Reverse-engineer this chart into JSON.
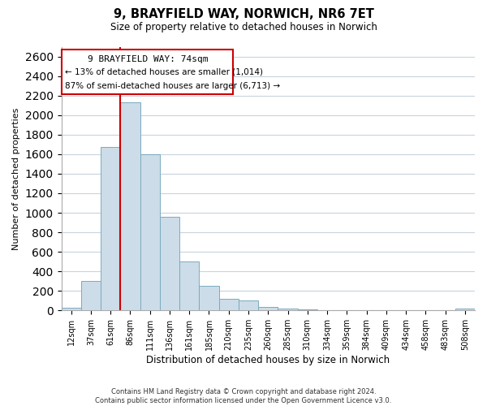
{
  "title": "9, BRAYFIELD WAY, NORWICH, NR6 7ET",
  "subtitle": "Size of property relative to detached houses in Norwich",
  "xlabel": "Distribution of detached houses by size in Norwich",
  "ylabel": "Number of detached properties",
  "bar_color": "#ccdce8",
  "bar_edge_color": "#7aaac0",
  "annotation_box_edge": "#cc0000",
  "property_line_color": "#cc0000",
  "categories": [
    "12sqm",
    "37sqm",
    "61sqm",
    "86sqm",
    "111sqm",
    "136sqm",
    "161sqm",
    "185sqm",
    "210sqm",
    "235sqm",
    "260sqm",
    "285sqm",
    "310sqm",
    "334sqm",
    "359sqm",
    "384sqm",
    "409sqm",
    "434sqm",
    "458sqm",
    "483sqm",
    "508sqm"
  ],
  "values": [
    25,
    300,
    1670,
    2130,
    1600,
    960,
    505,
    250,
    120,
    100,
    38,
    18,
    8,
    6,
    5,
    5,
    5,
    4,
    4,
    4,
    20
  ],
  "ylim": [
    0,
    2700
  ],
  "yticks": [
    0,
    200,
    400,
    600,
    800,
    1000,
    1200,
    1400,
    1600,
    1800,
    2000,
    2200,
    2400,
    2600
  ],
  "property_label": "9 BRAYFIELD WAY: 74sqm",
  "annotation_line1": "← 13% of detached houses are smaller (1,014)",
  "annotation_line2": "87% of semi-detached houses are larger (6,713) →",
  "footer_line1": "Contains HM Land Registry data © Crown copyright and database right 2024.",
  "footer_line2": "Contains public sector information licensed under the Open Government Licence v3.0.",
  "background_color": "#ffffff",
  "grid_color": "#c8d4dc"
}
